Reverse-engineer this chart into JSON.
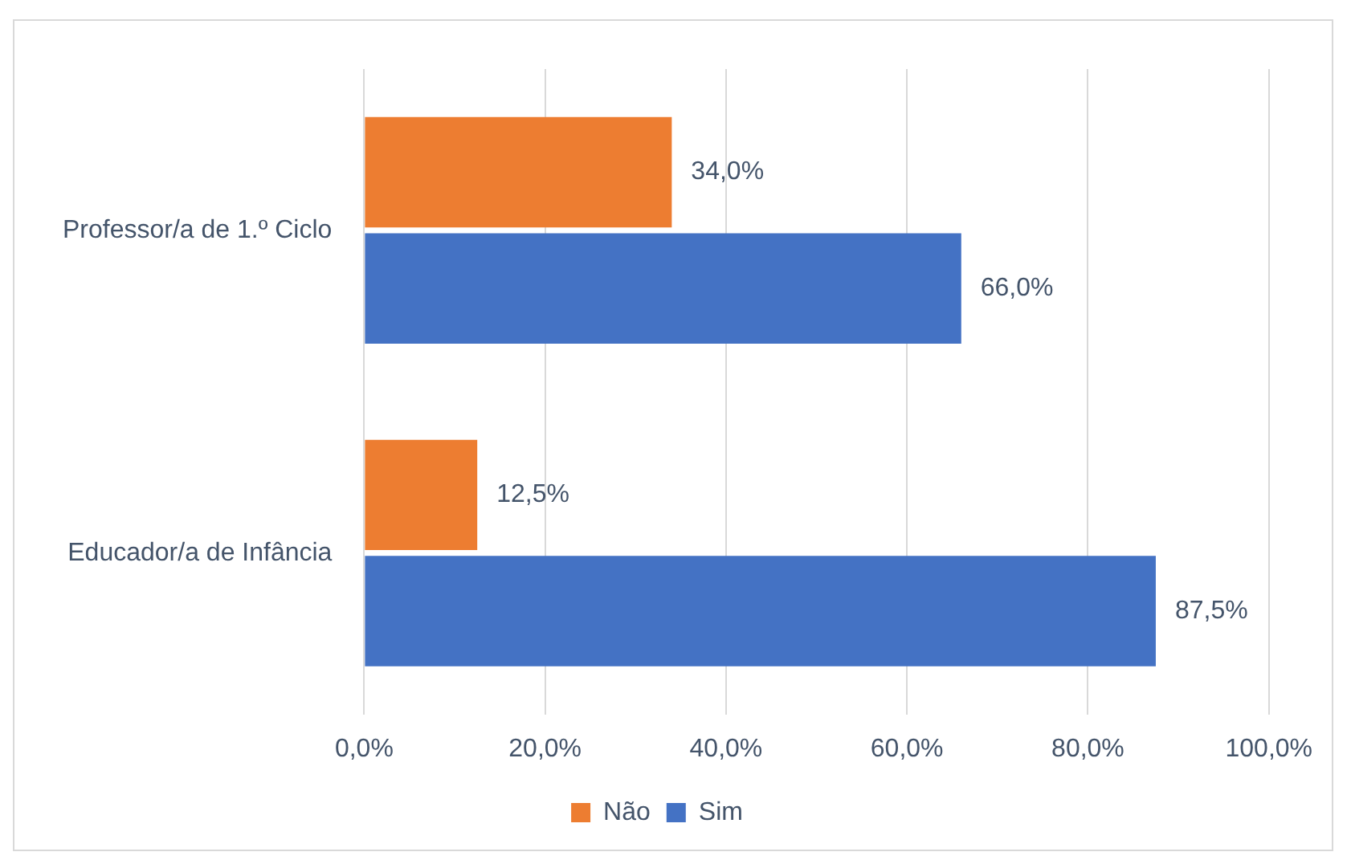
{
  "chart_data": {
    "type": "bar",
    "orientation": "horizontal",
    "categories": [
      "Professor/a de 1.º Ciclo",
      "Educador/a de Infância"
    ],
    "series": [
      {
        "name": "Não",
        "color": "#ed7d31",
        "values": [
          34.0,
          12.5
        ],
        "value_labels": [
          "34,0%",
          "12,5%"
        ]
      },
      {
        "name": "Sim",
        "color": "#4472c4",
        "values": [
          66.0,
          87.5
        ],
        "value_labels": [
          "66,0%",
          "87,5%"
        ]
      }
    ],
    "xlim": [
      0,
      100
    ],
    "xticks": [
      {
        "value": 0,
        "label": "0,0%"
      },
      {
        "value": 20,
        "label": "20,0%"
      },
      {
        "value": 40,
        "label": "40,0%"
      },
      {
        "value": 60,
        "label": "60,0%"
      },
      {
        "value": 80,
        "label": "80,0%"
      },
      {
        "value": 100,
        "label": "100,0%"
      }
    ],
    "grid": "x",
    "legend": "bottom"
  }
}
